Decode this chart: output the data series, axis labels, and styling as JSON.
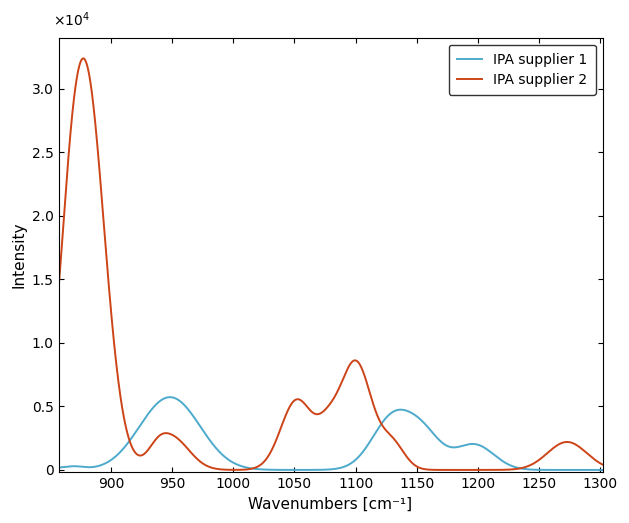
{
  "title": "",
  "xlabel": "Wavenumbers [cm⁻¹]",
  "ylabel": "Intensity",
  "xlim": [
    857,
    1302
  ],
  "ylim": [
    -200,
    34000
  ],
  "ytick_scale": 10000,
  "yticks": [
    0,
    0.5,
    1.0,
    1.5,
    2.0,
    2.5,
    3.0
  ],
  "xticks": [
    900,
    950,
    1000,
    1050,
    1100,
    1150,
    1200,
    1250,
    1300
  ],
  "color_ipa1": "#4DAACC",
  "color_ipa2": "#CC4418",
  "legend_labels": [
    "IPA supplier 1",
    "IPA supplier 2"
  ],
  "linewidth": 1.4,
  "background_color": "#ffffff"
}
